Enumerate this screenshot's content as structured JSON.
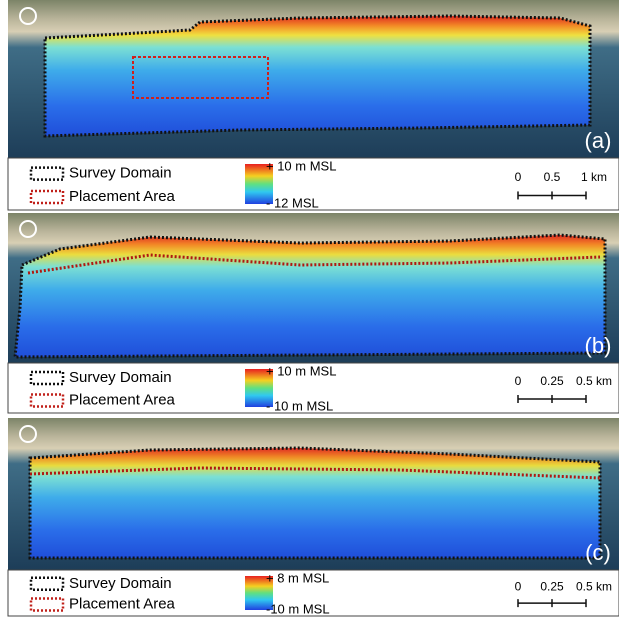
{
  "panels": [
    {
      "label": "(a)",
      "legend": {
        "survey": "Survey Domain",
        "placement": "Placement Area"
      },
      "colorbar": {
        "max": "+ 10 m MSL",
        "min": "- 12 MSL"
      },
      "scale": {
        "ticks": [
          "0",
          "0.5",
          "1 km"
        ]
      }
    },
    {
      "label": "(b)",
      "legend": {
        "survey": "Survey Domain",
        "placement": "Placement Area"
      },
      "colorbar": {
        "max": "+ 10 m MSL",
        "min": "- 10 m MSL"
      },
      "scale": {
        "ticks": [
          "0",
          "0.25",
          "0.5 km"
        ]
      }
    },
    {
      "label": "(c)",
      "legend": {
        "survey": "Survey Domain",
        "placement": "Placement Area"
      },
      "colorbar": {
        "max": "+ 8 m MSL",
        "min": "-10 m MSL"
      },
      "scale": {
        "ticks": [
          "0",
          "0.25",
          "0.5 km"
        ]
      }
    }
  ]
}
